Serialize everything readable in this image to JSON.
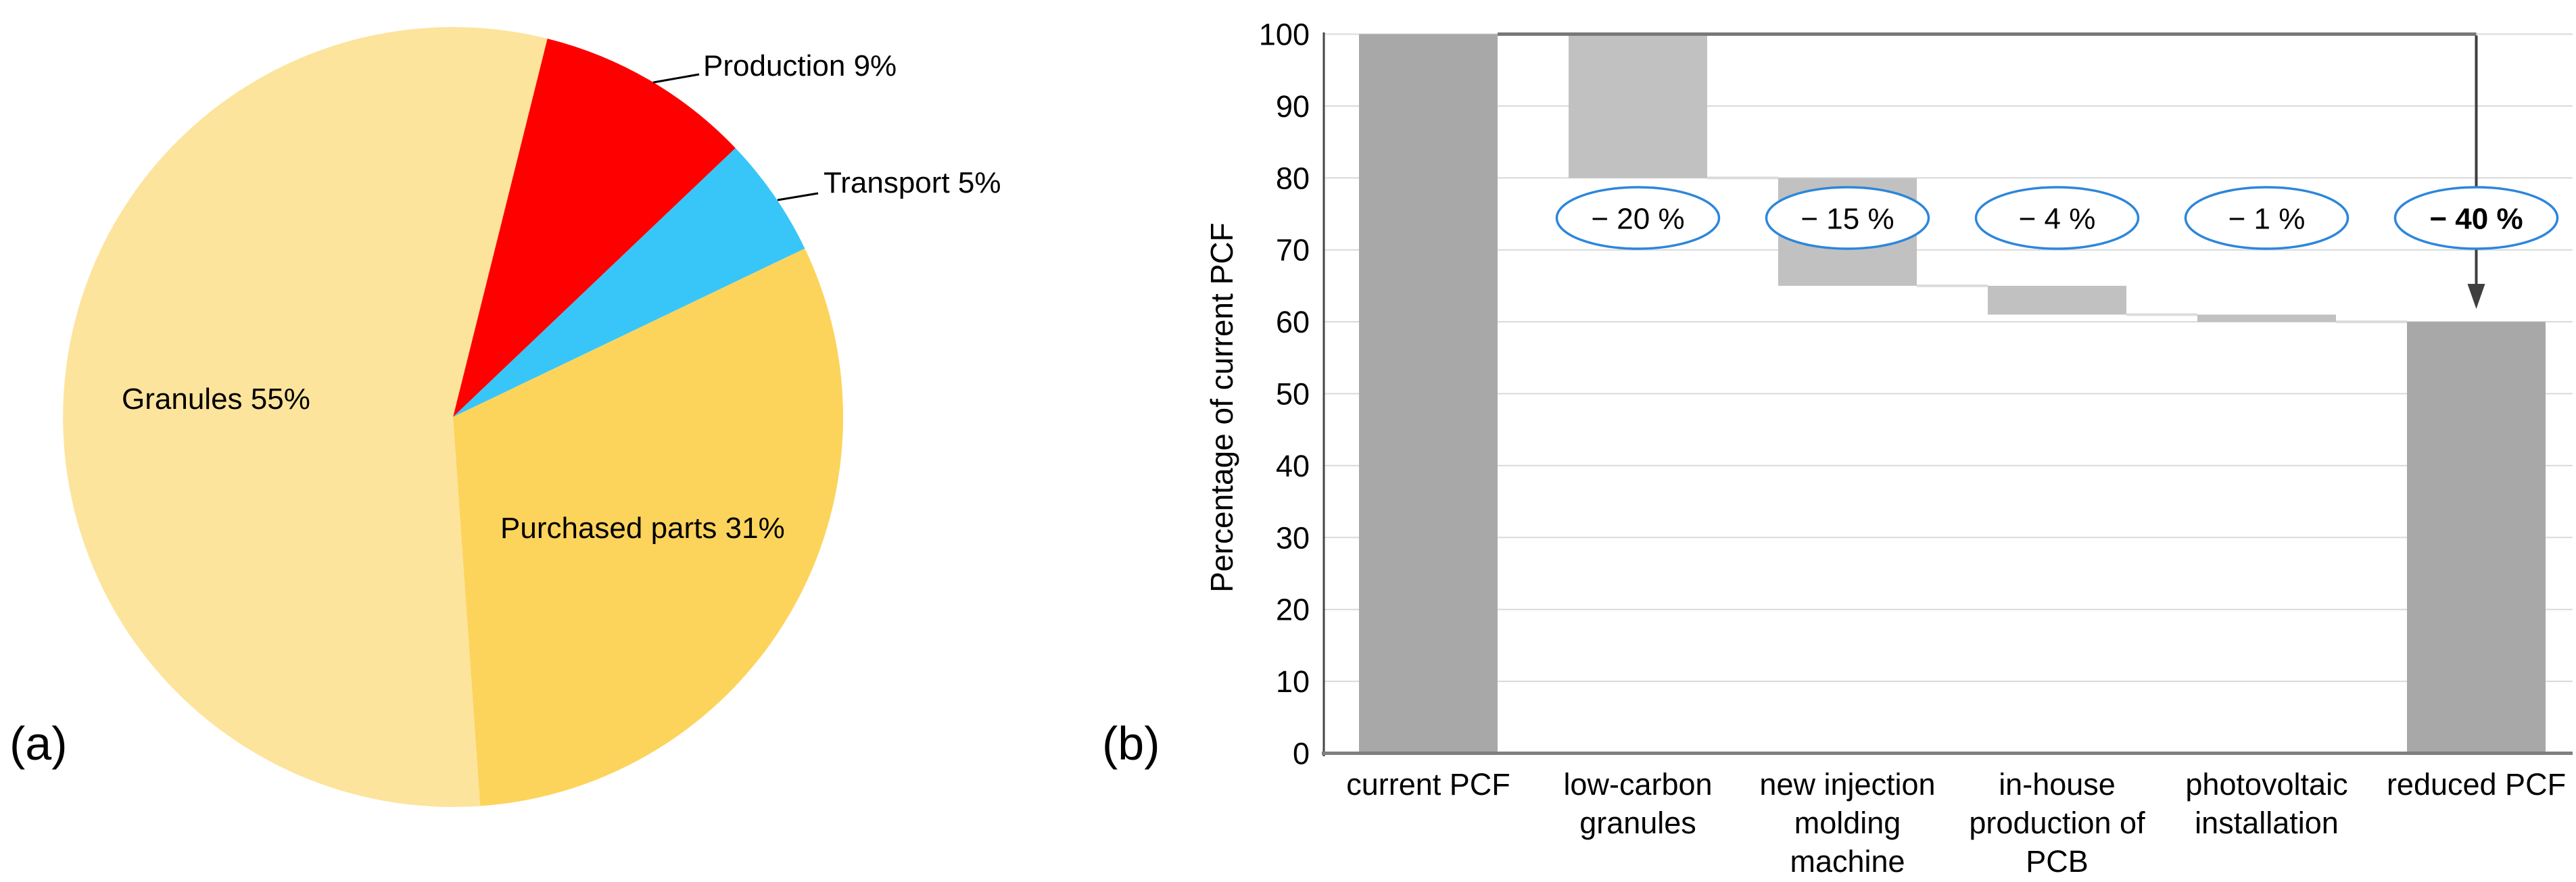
{
  "figure": {
    "panel_a_label": "(a)",
    "panel_b_label": "(b)"
  },
  "colors": {
    "pie_production": "#FE0000",
    "pie_transport": "#38C6F9",
    "pie_purchased_parts": "#FCD45C",
    "pie_granules": "#FDE49C",
    "bar_dark": "#A8A8A8",
    "bar_light": "#C1C1C1",
    "gridline": "#D9D9D9",
    "connector": "#DCDCDC",
    "top_guide_line": "#787878",
    "y_axis_line": "#454545",
    "x_baseline": "#7F7F7F",
    "arrow": "#3F3F3F",
    "oval_stroke": "#2D86DA",
    "oval_fill": "#FFFFFF",
    "text": "#000000"
  },
  "chart_data": [
    {
      "type": "pie",
      "title": "",
      "start_angle_deg": 14,
      "rotation": "clockwise",
      "slices": [
        {
          "name": "production",
          "label": "Production 9%",
          "pct": 9,
          "color_key": "pie_production",
          "label_placement": "outside"
        },
        {
          "name": "transport",
          "label": "Transport 5%",
          "pct": 5,
          "color_key": "pie_transport",
          "label_placement": "outside"
        },
        {
          "name": "purchased-parts",
          "label": "Purchased parts 31%",
          "pct": 31,
          "color_key": "pie_purchased_parts",
          "label_placement": "inside"
        },
        {
          "name": "granules",
          "label": "Granules 55%",
          "pct": 55,
          "color_key": "pie_granules",
          "label_placement": "inside"
        }
      ],
      "label_layout": {
        "granules": {
          "x": 180,
          "y": 605,
          "anchor": "start"
        },
        "purchased-parts": {
          "x": 740,
          "y": 796,
          "anchor": "start"
        },
        "production": {
          "x": 1040,
          "y": 112,
          "anchor": "start",
          "leader": [
            [
              966,
              122
            ],
            [
              1034,
              110
            ]
          ]
        },
        "transport": {
          "x": 1218,
          "y": 285,
          "anchor": "start",
          "leader": [
            [
              1150,
              296
            ],
            [
              1210,
              286
            ]
          ]
        }
      }
    },
    {
      "type": "bar",
      "subtype": "waterfall",
      "ylabel": "Percentage of current PCF",
      "xlabel": "",
      "ylim": [
        0,
        100
      ],
      "ytick_step": 10,
      "grid": true,
      "legend": "none",
      "categories": [
        "current PCF",
        "low-carbon granules",
        "new injection molding machine",
        "in-house production of PCB",
        "photovoltaic installation",
        "reduced PCF"
      ],
      "category_lines": [
        [
          "current PCF"
        ],
        [
          "low-carbon",
          "granules"
        ],
        [
          "new injection",
          "molding",
          "machine"
        ],
        [
          "in-house",
          "production of",
          "PCB"
        ],
        [
          "photovoltaic",
          "installation"
        ],
        [
          "reduced PCF"
        ]
      ],
      "bars": [
        {
          "from": 0,
          "to": 100,
          "style": "dark"
        },
        {
          "from": 80,
          "to": 100,
          "style": "light"
        },
        {
          "from": 65,
          "to": 80,
          "style": "light"
        },
        {
          "from": 61,
          "to": 65,
          "style": "light"
        },
        {
          "from": 60,
          "to": 61,
          "style": "light"
        },
        {
          "from": 0,
          "to": 60,
          "style": "dark"
        }
      ],
      "annotations": [
        {
          "bar": 1,
          "text": "− 20 %",
          "bold": false
        },
        {
          "bar": 2,
          "text": "− 15 %",
          "bold": false
        },
        {
          "bar": 3,
          "text": "− 4 %",
          "bold": false
        },
        {
          "bar": 4,
          "text": "− 1 %",
          "bold": false
        },
        {
          "bar": 5,
          "text": "− 40 %",
          "bold": true
        }
      ],
      "connectors": [
        {
          "after_bar": 1,
          "level": 80
        },
        {
          "after_bar": 2,
          "level": 65
        },
        {
          "after_bar": 3,
          "level": 61
        },
        {
          "after_bar": 4,
          "level": 60
        }
      ],
      "top_guide": {
        "level": 100,
        "from_bar": 0,
        "to_bar": 5
      },
      "reduction_arrow": {
        "at_bar": 5,
        "from_level": 100,
        "points_to": "top of reduced PCF bar"
      }
    }
  ]
}
